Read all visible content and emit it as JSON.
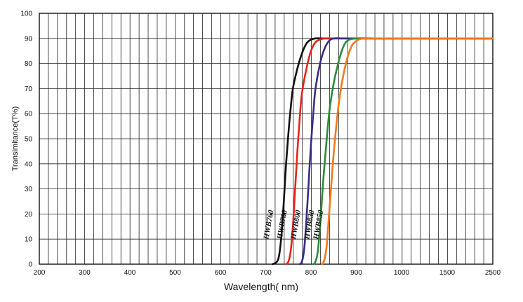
{
  "chart_data": {
    "type": "line",
    "title": "",
    "xlabel": "Wavelength( nm)",
    "ylabel": "Transimitance(T%)",
    "x_ticks": [
      "200",
      "300",
      "400",
      "500",
      "600",
      "700",
      "800",
      "900",
      "1000",
      "1500",
      "2500"
    ],
    "y_ticks": [
      "0",
      "10",
      "20",
      "30",
      "40",
      "50",
      "60",
      "70",
      "80",
      "90",
      "100"
    ],
    "ylim": [
      0,
      100
    ],
    "grid": true,
    "series": [
      {
        "name": "HWB760",
        "color": "#111111",
        "x": [
          715,
          725,
          730,
          735,
          740,
          745,
          750,
          755,
          760,
          770,
          780,
          790,
          800,
          810,
          830,
          900,
          1000,
          1500,
          2500
        ],
        "y": [
          0,
          1,
          4,
          12,
          25,
          40,
          52,
          62,
          70,
          78,
          84,
          88,
          89.5,
          90,
          90,
          90,
          90,
          90,
          90
        ]
      },
      {
        "name": "HWB780",
        "color": "#e3261d",
        "x": [
          745,
          750,
          755,
          760,
          765,
          770,
          775,
          780,
          790,
          800,
          810,
          820,
          830,
          850,
          900,
          1000,
          1500,
          2500
        ],
        "y": [
          0,
          1,
          5,
          15,
          30,
          45,
          58,
          68,
          78,
          85,
          88.5,
          89.5,
          90,
          90,
          90,
          90,
          90,
          90
        ]
      },
      {
        "name": "HWB800",
        "color": "#3b2a86",
        "x": [
          775,
          780,
          785,
          790,
          795,
          800,
          805,
          810,
          820,
          830,
          840,
          850,
          870,
          900,
          1000,
          1500,
          2500
        ],
        "y": [
          0,
          1,
          6,
          18,
          33,
          48,
          60,
          70,
          80,
          86,
          89,
          90,
          90,
          90,
          90,
          90,
          90
        ]
      },
      {
        "name": "HWB830",
        "color": "#2b8a3a",
        "x": [
          805,
          810,
          815,
          820,
          825,
          830,
          840,
          850,
          860,
          870,
          880,
          900,
          950,
          1000,
          1500,
          2500
        ],
        "y": [
          0,
          1,
          5,
          15,
          28,
          40,
          60,
          72,
          80,
          86,
          89,
          90,
          90,
          90,
          90,
          90
        ]
      },
      {
        "name": "HWB850",
        "color": "#f07a1e",
        "x": [
          825,
          830,
          835,
          840,
          845,
          850,
          860,
          870,
          880,
          890,
          900,
          910,
          930,
          1000,
          1500,
          2500
        ],
        "y": [
          0,
          2,
          8,
          20,
          32,
          44,
          62,
          74,
          82,
          87,
          89,
          89.8,
          90,
          90,
          90,
          90
        ]
      }
    ]
  }
}
